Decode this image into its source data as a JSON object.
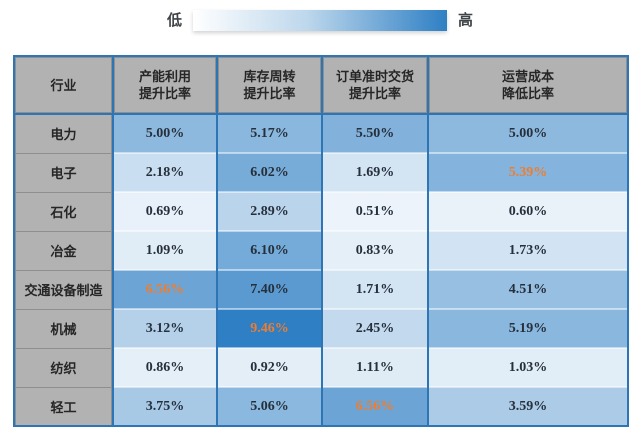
{
  "legend": {
    "low_label": "低",
    "high_label": "高",
    "gradient_low_color": "#ffffff",
    "gradient_high_color": "#2e7fc4"
  },
  "heatmap_style": {
    "low_color": "#f7fafd",
    "high_color": "#2e7fc4",
    "scale_max": 9.46,
    "border_color": "#2e75b6",
    "label_bg_color": "#b2b2b2",
    "normal_text_color": "#26303c",
    "max_highlight_text_color": "#ed7d31"
  },
  "chart_data": {
    "type": "heatmap",
    "row_header": "行业",
    "columns": [
      {
        "title_lines": [
          "产能利用",
          "提升比率"
        ]
      },
      {
        "title_lines": [
          "库存周转",
          "提升比率"
        ]
      },
      {
        "title_lines": [
          "订单准时交货",
          "提升比率"
        ]
      },
      {
        "title_lines": [
          "运营成本",
          "降低比率"
        ]
      }
    ],
    "rows": [
      {
        "label": "电力",
        "values": [
          "5.00%",
          "5.17%",
          "5.50%",
          "5.00%"
        ]
      },
      {
        "label": "电子",
        "values": [
          "2.18%",
          "6.02%",
          "1.69%",
          "5.39%"
        ]
      },
      {
        "label": "石化",
        "values": [
          "0.69%",
          "2.89%",
          "0.51%",
          "0.60%"
        ]
      },
      {
        "label": "冶金",
        "values": [
          "1.09%",
          "6.10%",
          "0.83%",
          "1.73%"
        ]
      },
      {
        "label": "交通设备制造",
        "values": [
          "6.56%",
          "7.40%",
          "1.71%",
          "4.51%"
        ]
      },
      {
        "label": "机械",
        "values": [
          "3.12%",
          "9.46%",
          "2.45%",
          "5.19%"
        ]
      },
      {
        "label": "纺织",
        "values": [
          "0.86%",
          "0.92%",
          "1.11%",
          "1.03%"
        ]
      },
      {
        "label": "轻工",
        "values": [
          "3.75%",
          "5.06%",
          "6.56%",
          "3.59%"
        ]
      }
    ],
    "notes": {
      "legend_meaning": "cell color encodes value from low (white) to high (dark blue)",
      "orange_values_meaning": "column maximum values are shown in orange"
    }
  }
}
